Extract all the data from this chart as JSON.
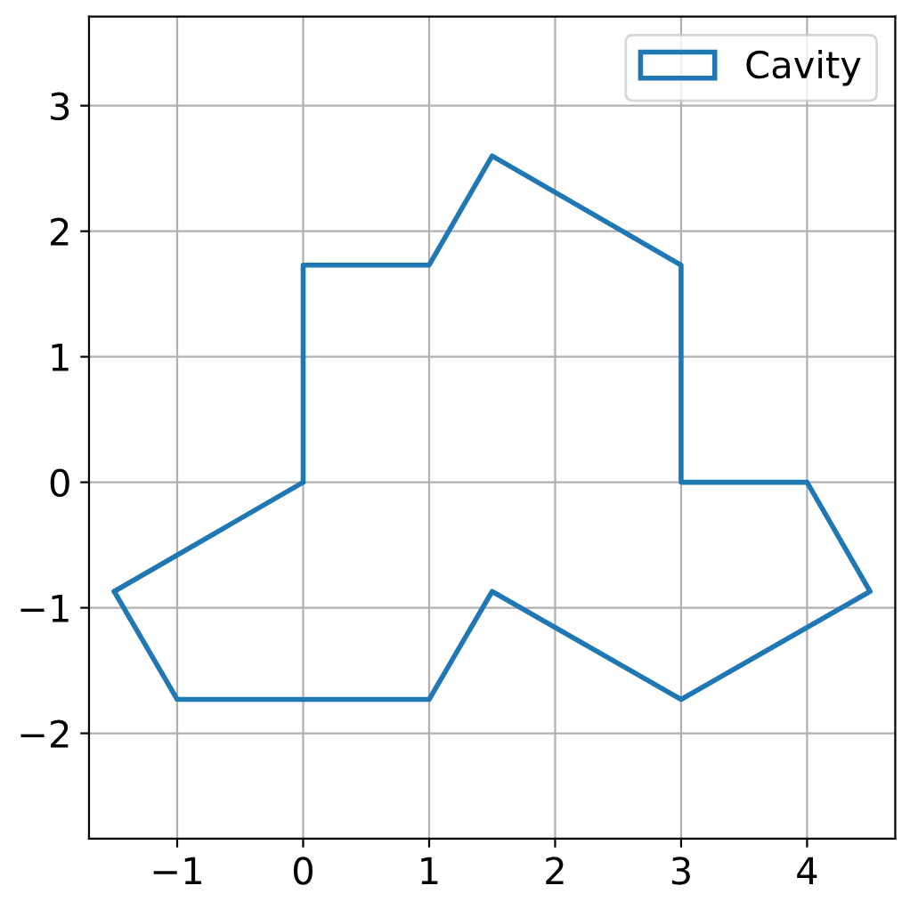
{
  "chart_data": {
    "type": "line",
    "x": [
      0,
      0,
      1,
      1.5,
      3,
      3,
      4,
      4.5,
      3,
      1.5,
      1,
      -1,
      -1.5
    ],
    "series": [
      {
        "name": "Cavity",
        "color": "#1f77b4",
        "values": [
          0,
          1.73,
          1.73,
          2.6,
          1.73,
          0,
          0,
          -0.87,
          -1.73,
          -0.87,
          -1.73,
          -1.73,
          -0.87
        ]
      },
      {
        "color": "#1f77b4",
        "x": [
          -1.5,
          0
        ],
        "values": [
          -0.87,
          0
        ]
      }
    ],
    "xlim": [
      -1.7,
      4.7
    ],
    "ylim": [
      -2.84,
      3.71
    ],
    "xticks": [
      {
        "value": -1,
        "label": "−1"
      },
      0,
      1,
      2,
      3,
      4
    ],
    "yticks": [
      {
        "value": -2,
        "label": "−2"
      },
      {
        "value": -1,
        "label": "−1"
      },
      0,
      1,
      2,
      3
    ],
    "grid": true,
    "legend": "top right",
    "marker": "none",
    "line_style": "solid"
  }
}
